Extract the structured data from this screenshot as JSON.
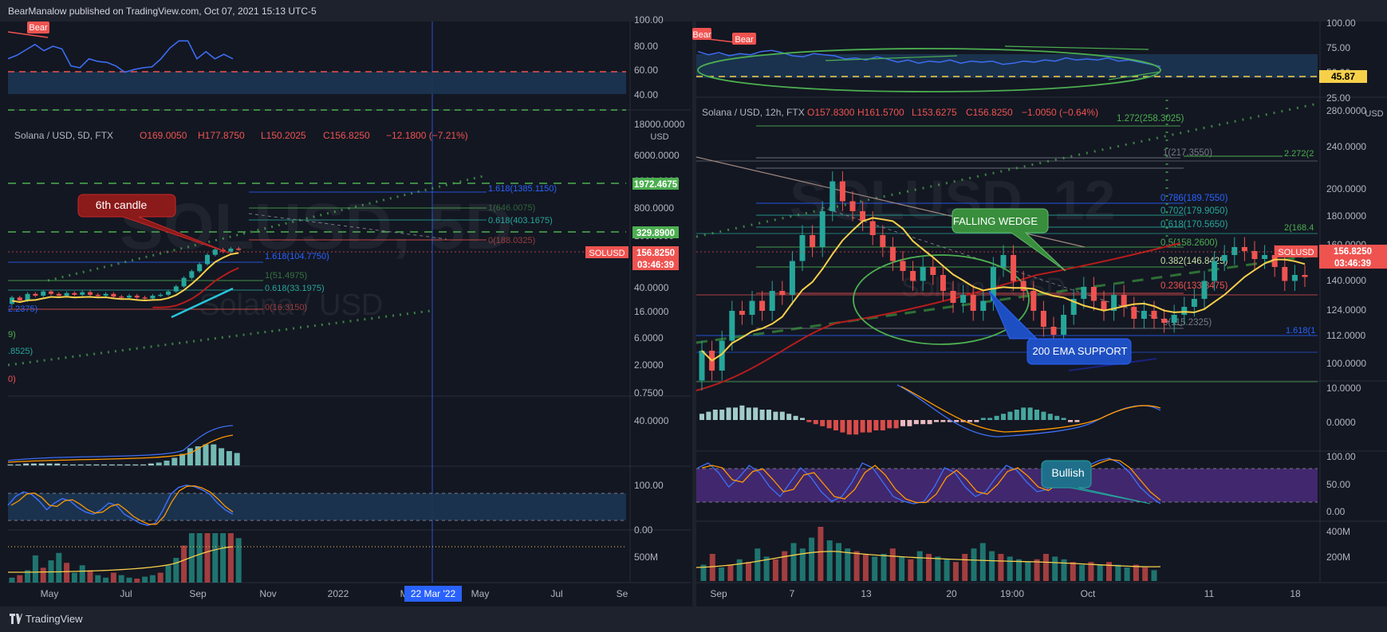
{
  "header": {
    "text": "BearManalow published on TradingView.com, Oct 07, 2021 15:13 UTC-5"
  },
  "footer": {
    "brand": "TradingView"
  },
  "colors": {
    "bg": "#131722",
    "up": "#26a69a",
    "down": "#ef5350",
    "green": "#4caf50",
    "blue": "#2962ff",
    "yellow": "#f7d04a",
    "rsi": "#3d6df2"
  },
  "chart_data": [
    {
      "type": "line",
      "panel": "left-rsi",
      "title": "",
      "label_bear": "Bear",
      "yticks": [
        "100.00",
        "80.00",
        "60.00",
        "40.00"
      ],
      "ylim": [
        20,
        100
      ],
      "series": [
        {
          "values": [
            70,
            74,
            80,
            86,
            79,
            84,
            81,
            62,
            60,
            70,
            67,
            66,
            62,
            55,
            58,
            60,
            61,
            70,
            82,
            90,
            90,
            70,
            78,
            70,
            75,
            70
          ]
        }
      ]
    },
    {
      "type": "candlestick",
      "panel": "left-main",
      "legend": {
        "pair": "Solana / USD, 5D, FTX",
        "o": "O169.0050",
        "h": "H177.8750",
        "l": "L150.2025",
        "c": "C156.8250",
        "chg": "−12.1800 (−7.21%)"
      },
      "watermark": "SOLUSD, 5D",
      "watermark_sub": "Solana / USD",
      "xticks": [
        "May",
        "Jul",
        "Sep",
        "Nov",
        "2022",
        "Mar",
        "May",
        "Jul",
        "Se"
      ],
      "crosshair_date": "22 Mar '22",
      "yticks": [
        "18000.0000",
        "6000.0000",
        "2000.0000",
        "800.0000",
        "100.0000",
        "40.0000",
        "16.0000",
        "6.0000",
        "2.0000",
        "0.7500"
      ],
      "currency": "USD",
      "price_labels": [
        {
          "value": "1972.4675",
          "color": "#4caf50"
        },
        {
          "value": "329.8900",
          "color": "#4caf50"
        },
        {
          "value": "156.8250",
          "color": "#ef5350"
        },
        {
          "value": "03:46:39",
          "color": "#ef5350"
        }
      ],
      "symbol_tag": "SOLUSD",
      "fib": [
        "1.618(1385.1150)",
        "1(646.0075)",
        "0.618(403.1675)",
        "0(188.0325)",
        "1.618(104.7750)",
        "1(51.4975)",
        "0.618(33.1975)",
        "0(16.3150)"
      ],
      "edge_labels": [
        "2.2375)",
        "9)",
        ".8525)",
        "0)"
      ],
      "annotation": "6th candle",
      "candles": [
        {
          "o": 25,
          "c": 31
        },
        {
          "o": 31,
          "c": 28
        },
        {
          "o": 28,
          "c": 35
        },
        {
          "o": 35,
          "c": 33
        },
        {
          "o": 33,
          "c": 38
        },
        {
          "o": 38,
          "c": 35
        },
        {
          "o": 35,
          "c": 33
        },
        {
          "o": 33,
          "c": 36
        },
        {
          "o": 36,
          "c": 34
        },
        {
          "o": 34,
          "c": 37
        },
        {
          "o": 37,
          "c": 34
        },
        {
          "o": 34,
          "c": 33
        },
        {
          "o": 33,
          "c": 35
        },
        {
          "o": 35,
          "c": 32
        },
        {
          "o": 32,
          "c": 31
        },
        {
          "o": 31,
          "c": 33
        },
        {
          "o": 33,
          "c": 31
        },
        {
          "o": 31,
          "c": 30
        },
        {
          "o": 30,
          "c": 33
        },
        {
          "o": 33,
          "c": 34
        },
        {
          "o": 34,
          "c": 38
        },
        {
          "o": 38,
          "c": 45
        },
        {
          "o": 45,
          "c": 60
        },
        {
          "o": 60,
          "c": 75
        },
        {
          "o": 75,
          "c": 95
        },
        {
          "o": 95,
          "c": 130
        },
        {
          "o": 130,
          "c": 155
        },
        {
          "o": 155,
          "c": 145
        },
        {
          "o": 145,
          "c": 160
        },
        {
          "o": 160,
          "c": 157
        }
      ]
    },
    {
      "type": "bar",
      "panel": "left-macd",
      "yticks": [
        "40.0000"
      ],
      "values": [
        1,
        1,
        2,
        2,
        2,
        2,
        2,
        1,
        1,
        1,
        1,
        1,
        1,
        1,
        1,
        1,
        1,
        1,
        2,
        3,
        5,
        8,
        12,
        18,
        20,
        22,
        22,
        18,
        15,
        13
      ]
    },
    {
      "type": "line",
      "panel": "left-stoch",
      "yticks": [
        "100.00",
        "0.00"
      ],
      "series": [
        {
          "values": [
            50,
            70,
            80,
            75,
            60,
            40,
            55,
            65,
            60,
            45,
            35,
            30,
            40,
            55,
            50,
            30,
            20,
            10,
            5,
            10,
            40,
            75,
            90,
            95,
            92,
            85,
            75,
            55,
            40,
            30
          ]
        }
      ]
    },
    {
      "type": "bar",
      "panel": "left-volume",
      "yticks": [
        "500M"
      ],
      "values": [
        10,
        15,
        25,
        55,
        30,
        45,
        60,
        40,
        20,
        35,
        25,
        15,
        10,
        20,
        15,
        10,
        8,
        12,
        15,
        20,
        35,
        50,
        75,
        100,
        100,
        100,
        100,
        100,
        100,
        90
      ]
    },
    {
      "type": "line",
      "panel": "right-rsi",
      "label_bear": "Bear",
      "yticks": [
        "100.00",
        "75.00",
        "50.00",
        "25.00"
      ],
      "price_label": "45.87",
      "ylim": [
        25,
        100
      ],
      "series": [
        {
          "values": [
            78,
            72,
            76,
            70,
            74,
            72,
            78,
            80,
            76,
            70,
            68,
            74,
            72,
            70,
            64,
            66,
            62,
            68,
            64,
            58,
            62,
            56,
            60,
            58,
            62,
            56,
            60,
            58,
            60,
            54,
            56,
            60,
            58,
            62,
            60,
            66,
            62,
            64,
            62,
            66,
            60,
            62,
            58,
            54,
            50
          ]
        }
      ]
    },
    {
      "type": "candlestick",
      "panel": "right-main",
      "legend": {
        "pair": "Solana / USD, 12h, FTX",
        "o": "O157.8300",
        "h": "H161.5700",
        "l": "L153.6275",
        "c": "C156.8250",
        "chg": "−1.0050 (−0.64%)"
      },
      "watermark": "SOLUSD, 12",
      "watermark_sub": "Solana / USD",
      "xticks": [
        "Sep",
        "7",
        "13",
        "20",
        "19:00",
        "Oct",
        "11",
        "18"
      ],
      "yticks": [
        "280.0000",
        "240.0000",
        "200.0000",
        "180.0000",
        "160.0000",
        "140.0000",
        "124.0000",
        "112.0000",
        "100.0000"
      ],
      "currency": "USD",
      "price_labels": [
        {
          "value": "156.8250",
          "color": "#ef5350"
        },
        {
          "value": "03:46:39",
          "color": "#ef5350"
        }
      ],
      "symbol_tag": "SOLUSD",
      "fib": [
        "1.272(258.3025)",
        "2.272(2",
        "1(217.3550)",
        "0.786(189.7550)",
        "0.702(179.9050)",
        "0.618(170.5650)",
        "2(168.4",
        "0.5(158.2600)",
        "0.382(146.8425)",
        "0.236(133.8475)",
        "0(115.2325)",
        "1.618(1"
      ],
      "annotations": [
        "FALLING WEDGE",
        "200 EMA SUPPORT"
      ],
      "candles": [
        {
          "o": 105,
          "c": 120
        },
        {
          "o": 120,
          "c": 110
        },
        {
          "o": 110,
          "c": 125
        },
        {
          "o": 125,
          "c": 140
        },
        {
          "o": 140,
          "c": 138
        },
        {
          "o": 138,
          "c": 145
        },
        {
          "o": 145,
          "c": 140
        },
        {
          "o": 140,
          "c": 150
        },
        {
          "o": 150,
          "c": 148
        },
        {
          "o": 148,
          "c": 165
        },
        {
          "o": 165,
          "c": 178
        },
        {
          "o": 178,
          "c": 172
        },
        {
          "o": 172,
          "c": 190
        },
        {
          "o": 190,
          "c": 205
        },
        {
          "o": 205,
          "c": 195
        },
        {
          "o": 195,
          "c": 190
        },
        {
          "o": 190,
          "c": 185
        },
        {
          "o": 185,
          "c": 178
        },
        {
          "o": 178,
          "c": 172
        },
        {
          "o": 172,
          "c": 165
        },
        {
          "o": 165,
          "c": 160
        },
        {
          "o": 160,
          "c": 155
        },
        {
          "o": 155,
          "c": 162
        },
        {
          "o": 162,
          "c": 158
        },
        {
          "o": 158,
          "c": 150
        },
        {
          "o": 150,
          "c": 144
        },
        {
          "o": 144,
          "c": 148
        },
        {
          "o": 148,
          "c": 140
        },
        {
          "o": 140,
          "c": 145
        },
        {
          "o": 145,
          "c": 162
        },
        {
          "o": 162,
          "c": 168
        },
        {
          "o": 168,
          "c": 155
        },
        {
          "o": 155,
          "c": 150
        },
        {
          "o": 150,
          "c": 140
        },
        {
          "o": 140,
          "c": 132
        },
        {
          "o": 132,
          "c": 128
        },
        {
          "o": 128,
          "c": 138
        },
        {
          "o": 138,
          "c": 146
        },
        {
          "o": 146,
          "c": 152
        },
        {
          "o": 152,
          "c": 145
        },
        {
          "o": 145,
          "c": 140
        },
        {
          "o": 140,
          "c": 148
        },
        {
          "o": 148,
          "c": 142
        },
        {
          "o": 142,
          "c": 136
        },
        {
          "o": 136,
          "c": 140
        },
        {
          "o": 140,
          "c": 136
        },
        {
          "o": 136,
          "c": 134
        },
        {
          "o": 134,
          "c": 138
        },
        {
          "o": 138,
          "c": 142
        },
        {
          "o": 142,
          "c": 146
        },
        {
          "o": 146,
          "c": 155
        },
        {
          "o": 155,
          "c": 165
        },
        {
          "o": 165,
          "c": 168
        },
        {
          "o": 168,
          "c": 172
        },
        {
          "o": 172,
          "c": 170
        },
        {
          "o": 170,
          "c": 166
        },
        {
          "o": 166,
          "c": 168
        },
        {
          "o": 168,
          "c": 162
        },
        {
          "o": 162,
          "c": 155
        },
        {
          "o": 155,
          "c": 158
        },
        {
          "o": 158,
          "c": 157
        }
      ]
    },
    {
      "type": "bar",
      "panel": "right-macd",
      "yticks": [
        "10.0000",
        "0.0000"
      ],
      "values": [
        3,
        4,
        5,
        5,
        6,
        6,
        7,
        6,
        6,
        5,
        5,
        4,
        4,
        3,
        2,
        1,
        -1,
        -2,
        -3,
        -4,
        -5,
        -6,
        -7,
        -7,
        -6,
        -6,
        -5,
        -5,
        -4,
        -4,
        -3,
        -3,
        -2,
        -2,
        -2,
        -1,
        -1,
        -1,
        -1,
        -1,
        -1,
        -1,
        1,
        1,
        2,
        3,
        4,
        5,
        6,
        6,
        5,
        4,
        3,
        2,
        1,
        -1,
        -1
      ]
    },
    {
      "type": "line",
      "panel": "right-stoch",
      "yticks": [
        "100.00",
        "50.00",
        "0.00"
      ],
      "annotation": "Bullish",
      "series": [
        {
          "values": [
            80,
            90,
            70,
            40,
            60,
            85,
            70,
            40,
            20,
            50,
            80,
            60,
            30,
            10,
            20,
            50,
            90,
            80,
            50,
            20,
            10,
            5,
            10,
            40,
            80,
            70,
            40,
            20,
            30,
            60,
            85,
            75,
            50,
            30,
            35,
            60,
            80,
            75,
            85,
            95,
            100,
            90,
            70,
            40,
            20,
            5
          ]
        }
      ]
    },
    {
      "type": "bar",
      "panel": "right-volume",
      "yticks": [
        "400M",
        "200M"
      ],
      "values": [
        30,
        50,
        25,
        30,
        40,
        35,
        60,
        45,
        40,
        55,
        70,
        60,
        80,
        100,
        75,
        70,
        60,
        55,
        50,
        45,
        50,
        60,
        45,
        40,
        55,
        50,
        45,
        40,
        35,
        50,
        60,
        70,
        55,
        50,
        45,
        40,
        35,
        40,
        50,
        45,
        40,
        35,
        30,
        35,
        30,
        35,
        30,
        25,
        30,
        25,
        20
      ]
    }
  ]
}
